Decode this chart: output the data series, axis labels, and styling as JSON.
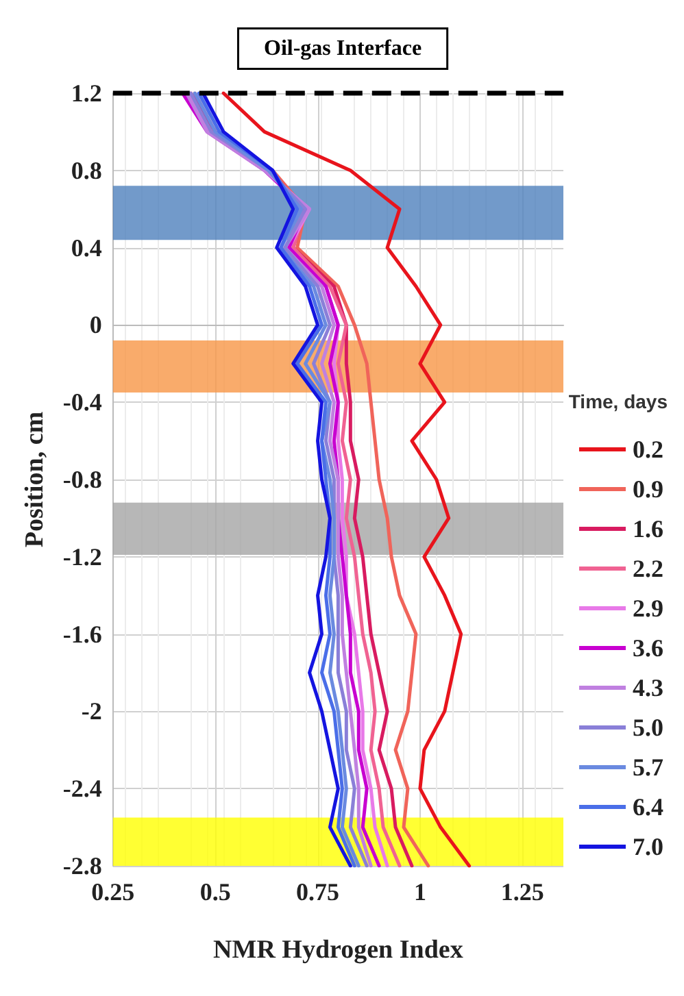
{
  "chart_data": {
    "type": "line",
    "xlabel": "NMR Hydrogen Index",
    "ylabel": "Position, cm",
    "legend_title": "Time, days",
    "legend": "right",
    "grid": true,
    "line_style": "solid",
    "marker": "none",
    "xlim": [
      0.25,
      1.35
    ],
    "xticks": [
      0.25,
      0.5,
      0.75,
      1,
      1.25
    ],
    "ylim": [
      -2.8,
      1.2
    ],
    "yticks": [
      -2.8,
      -2.4,
      -2,
      -1.6,
      -1.2,
      -0.8,
      -0.4,
      0,
      0.4,
      0.8,
      1.2
    ],
    "ref_lines": [
      {
        "axis": "y",
        "value": 1.2,
        "label": "Oil-gas Interface",
        "color": "#000000",
        "line_style": "dashed"
      }
    ],
    "bands": [
      {
        "axis": "y",
        "from": 0.44,
        "to": 0.72,
        "color": "#4f81bd"
      },
      {
        "axis": "y",
        "from": -0.35,
        "to": -0.08,
        "color": "#f79646"
      },
      {
        "axis": "y",
        "from": -1.19,
        "to": -0.92,
        "color": "#a5a5a5"
      },
      {
        "axis": "y",
        "from": -2.8,
        "to": -2.55,
        "color": "#ffff00"
      }
    ],
    "series": [
      {
        "name": "0.2",
        "color": "#e8141c",
        "x": [
          0.52,
          0.62,
          0.83,
          0.95,
          0.92,
          0.99,
          1.05,
          1.0,
          1.06,
          0.98,
          1.04,
          1.07,
          1.01,
          1.06,
          1.1,
          1.08,
          1.06,
          1.01,
          1.0,
          1.05,
          1.12
        ],
        "values": [
          1.2,
          1.0,
          0.8,
          0.6,
          0.4,
          0.2,
          0,
          -0.2,
          -0.4,
          -0.6,
          -0.8,
          -1.0,
          -1.2,
          -1.4,
          -1.6,
          -1.8,
          -2.0,
          -2.2,
          -2.4,
          -2.6,
          -2.8
        ]
      },
      {
        "name": "0.9",
        "color": "#f0645a",
        "x": [
          0.45,
          0.5,
          0.64,
          0.72,
          0.7,
          0.8,
          0.84,
          0.87,
          0.88,
          0.89,
          0.9,
          0.92,
          0.93,
          0.95,
          0.99,
          0.98,
          0.97,
          0.94,
          0.97,
          0.96,
          1.02
        ],
        "values": [
          1.2,
          1.0,
          0.8,
          0.6,
          0.4,
          0.2,
          0,
          -0.2,
          -0.4,
          -0.6,
          -0.8,
          -1.0,
          -1.2,
          -1.4,
          -1.6,
          -1.8,
          -2.0,
          -2.2,
          -2.4,
          -2.6,
          -2.8
        ]
      },
      {
        "name": "1.6",
        "color": "#d81b60",
        "x": [
          0.44,
          0.5,
          0.63,
          0.72,
          0.69,
          0.79,
          0.82,
          0.82,
          0.83,
          0.83,
          0.85,
          0.84,
          0.86,
          0.87,
          0.88,
          0.9,
          0.92,
          0.9,
          0.93,
          0.94,
          0.98
        ],
        "values": [
          1.2,
          1.0,
          0.8,
          0.6,
          0.4,
          0.2,
          0,
          -0.2,
          -0.4,
          -0.6,
          -0.8,
          -1.0,
          -1.2,
          -1.4,
          -1.6,
          -1.8,
          -2.0,
          -2.2,
          -2.4,
          -2.6,
          -2.8
        ]
      },
      {
        "name": "2.2",
        "color": "#f06292",
        "x": [
          0.43,
          0.49,
          0.63,
          0.72,
          0.69,
          0.78,
          0.82,
          0.8,
          0.82,
          0.81,
          0.83,
          0.82,
          0.84,
          0.85,
          0.86,
          0.88,
          0.89,
          0.88,
          0.9,
          0.91,
          0.95
        ],
        "values": [
          1.2,
          1.0,
          0.8,
          0.6,
          0.4,
          0.2,
          0,
          -0.2,
          -0.4,
          -0.6,
          -0.8,
          -1.0,
          -1.2,
          -1.4,
          -1.6,
          -1.8,
          -2.0,
          -2.2,
          -2.4,
          -2.6,
          -2.8
        ]
      },
      {
        "name": "2.9",
        "color": "#e879e8",
        "x": [
          0.43,
          0.49,
          0.62,
          0.73,
          0.68,
          0.77,
          0.8,
          0.79,
          0.8,
          0.8,
          0.81,
          0.81,
          0.82,
          0.82,
          0.84,
          0.85,
          0.86,
          0.86,
          0.88,
          0.89,
          0.92
        ],
        "values": [
          1.2,
          1.0,
          0.8,
          0.6,
          0.4,
          0.2,
          0,
          -0.2,
          -0.4,
          -0.6,
          -0.8,
          -1.0,
          -1.2,
          -1.4,
          -1.6,
          -1.8,
          -2.0,
          -2.2,
          -2.4,
          -2.6,
          -2.8
        ]
      },
      {
        "name": "3.6",
        "color": "#c800d0",
        "x": [
          0.42,
          0.48,
          0.62,
          0.72,
          0.68,
          0.77,
          0.8,
          0.78,
          0.8,
          0.79,
          0.8,
          0.8,
          0.81,
          0.82,
          0.83,
          0.83,
          0.85,
          0.85,
          0.87,
          0.86,
          0.9
        ],
        "values": [
          1.2,
          1.0,
          0.8,
          0.6,
          0.4,
          0.2,
          0,
          -0.2,
          -0.4,
          -0.6,
          -0.8,
          -1.0,
          -1.2,
          -1.4,
          -1.6,
          -1.8,
          -2.0,
          -2.2,
          -2.4,
          -2.6,
          -2.8
        ]
      },
      {
        "name": "4.3",
        "color": "#c080e0",
        "x": [
          0.43,
          0.48,
          0.62,
          0.73,
          0.67,
          0.76,
          0.79,
          0.76,
          0.79,
          0.78,
          0.8,
          0.8,
          0.8,
          0.81,
          0.81,
          0.82,
          0.83,
          0.84,
          0.85,
          0.85,
          0.88
        ],
        "values": [
          1.2,
          1.0,
          0.8,
          0.6,
          0.4,
          0.2,
          0,
          -0.2,
          -0.4,
          -0.6,
          -0.8,
          -1.0,
          -1.2,
          -1.4,
          -1.6,
          -1.8,
          -2.0,
          -2.2,
          -2.4,
          -2.6,
          -2.8
        ]
      },
      {
        "name": "5.0",
        "color": "#8a7fd8",
        "x": [
          0.44,
          0.49,
          0.63,
          0.72,
          0.67,
          0.75,
          0.78,
          0.74,
          0.78,
          0.77,
          0.79,
          0.79,
          0.79,
          0.8,
          0.8,
          0.8,
          0.82,
          0.82,
          0.84,
          0.83,
          0.87
        ],
        "values": [
          1.2,
          1.0,
          0.8,
          0.6,
          0.4,
          0.2,
          0,
          -0.2,
          -0.4,
          -0.6,
          -0.8,
          -1.0,
          -1.2,
          -1.4,
          -1.6,
          -1.8,
          -2.0,
          -2.2,
          -2.4,
          -2.6,
          -2.8
        ]
      },
      {
        "name": "5.7",
        "color": "#6a8ae0",
        "x": [
          0.45,
          0.5,
          0.63,
          0.71,
          0.66,
          0.74,
          0.77,
          0.72,
          0.78,
          0.76,
          0.78,
          0.79,
          0.79,
          0.78,
          0.79,
          0.78,
          0.8,
          0.81,
          0.82,
          0.81,
          0.85
        ],
        "values": [
          1.2,
          1.0,
          0.8,
          0.6,
          0.4,
          0.2,
          0,
          -0.2,
          -0.4,
          -0.6,
          -0.8,
          -1.0,
          -1.2,
          -1.4,
          -1.6,
          -1.8,
          -2.0,
          -2.2,
          -2.4,
          -2.6,
          -2.8
        ]
      },
      {
        "name": "6.4",
        "color": "#4a6ee8",
        "x": [
          0.46,
          0.51,
          0.64,
          0.7,
          0.66,
          0.73,
          0.76,
          0.7,
          0.77,
          0.76,
          0.77,
          0.78,
          0.78,
          0.77,
          0.78,
          0.76,
          0.79,
          0.8,
          0.81,
          0.8,
          0.84
        ],
        "values": [
          1.2,
          1.0,
          0.8,
          0.6,
          0.4,
          0.2,
          0,
          -0.2,
          -0.4,
          -0.6,
          -0.8,
          -1.0,
          -1.2,
          -1.4,
          -1.6,
          -1.8,
          -2.0,
          -2.2,
          -2.4,
          -2.6,
          -2.8
        ]
      },
      {
        "name": "7.0",
        "color": "#1414e0",
        "x": [
          0.47,
          0.52,
          0.64,
          0.69,
          0.65,
          0.72,
          0.75,
          0.69,
          0.76,
          0.75,
          0.76,
          0.78,
          0.77,
          0.75,
          0.76,
          0.73,
          0.76,
          0.78,
          0.8,
          0.78,
          0.83
        ],
        "values": [
          1.2,
          1.0,
          0.8,
          0.6,
          0.4,
          0.2,
          0,
          -0.2,
          -0.4,
          -0.6,
          -0.8,
          -1.0,
          -1.2,
          -1.4,
          -1.6,
          -1.8,
          -2.0,
          -2.2,
          -2.4,
          -2.6,
          -2.8
        ]
      }
    ]
  }
}
